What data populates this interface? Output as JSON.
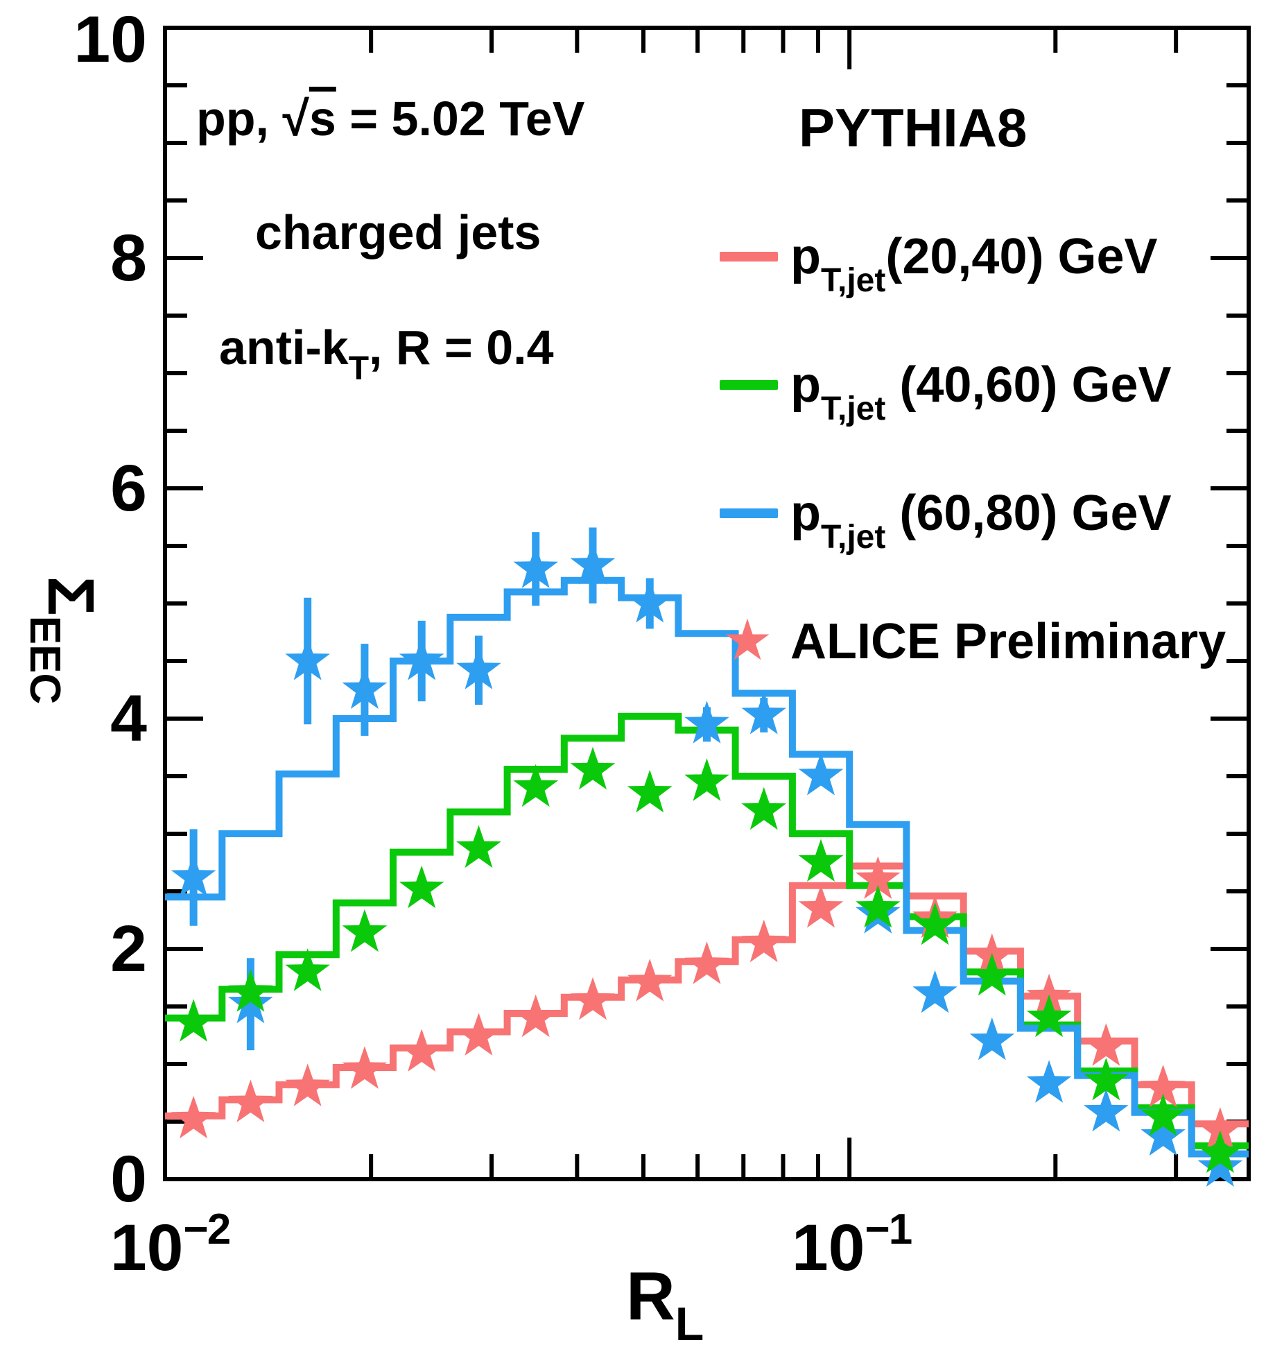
{
  "figure": {
    "background": "#ffffff",
    "axis_color": "#000000"
  },
  "annotations": {
    "line1_prefix": "pp, ",
    "line1_sqrt_symbol": "√",
    "line1_sqrt_arg": "s",
    "line1_suffix": " = 5.02 TeV",
    "line2": "charged jets",
    "line3_prefix": "anti-k",
    "line3_sub": "T",
    "line3_suffix": ", R = 0.4"
  },
  "legend": {
    "header": "PYTHIA8",
    "entries": [
      {
        "sym": "p",
        "sub": "T,jet",
        "label": "(20,40) GeV",
        "color": "#f87373",
        "type": "line"
      },
      {
        "sym": "p",
        "sub": "T,jet",
        "label": " (40,60) GeV",
        "color": "#0ac90a",
        "type": "line"
      },
      {
        "sym": "p",
        "sub": "T,jet",
        "label": " (60,80) GeV",
        "color": "#2e9ef0",
        "type": "line"
      },
      {
        "label": "ALICE Preliminary",
        "color": "#f87373",
        "type": "star",
        "glyph": "★"
      }
    ]
  },
  "axes": {
    "x": {
      "label_sym": "R",
      "label_sub": "L",
      "tick1_base": "10",
      "tick1_exp": "−2",
      "tick2_base": "10",
      "tick2_exp": "−1"
    },
    "y": {
      "label_sym": "Σ",
      "label_sub": "EEC",
      "tick_labels": [
        "0",
        "2",
        "4",
        "6",
        "8",
        "10"
      ]
    }
  },
  "chart_data": {
    "type": "step_histogram_with_star_markers",
    "title": "",
    "xlabel": "R_L",
    "ylabel": "Sigma_EEC",
    "xscale": "log",
    "xlim": [
      0.01,
      0.383119
    ],
    "ylim": [
      0,
      10
    ],
    "grid": false,
    "legend_position": "top-right",
    "x_major_ticks": [
      0.01,
      0.1
    ],
    "x_minor_ticks": [
      0.02,
      0.03,
      0.04,
      0.05,
      0.06,
      0.07,
      0.08,
      0.09,
      0.2,
      0.3
    ],
    "y_major_ticks": [
      0,
      2,
      4,
      6,
      8,
      10
    ],
    "y_minor_step": 0.5,
    "bin_edges": [
      0.01,
      0.012115,
      0.014678,
      0.017783,
      0.021544,
      0.026102,
      0.031623,
      0.038312,
      0.046416,
      0.056234,
      0.068129,
      0.08254,
      0.1,
      0.121153,
      0.14678,
      0.177828,
      0.215443,
      0.261016,
      0.316228,
      0.383119
    ],
    "series": [
      {
        "name": "pT,jet (20,40) GeV PYTHIA8",
        "style": "step",
        "color": "#f87373",
        "values": [
          0.55,
          0.69,
          0.82,
          0.97,
          1.14,
          1.28,
          1.44,
          1.58,
          1.73,
          1.89,
          2.08,
          2.55,
          2.72,
          2.46,
          1.98,
          1.59,
          1.2,
          0.82,
          0.48
        ]
      },
      {
        "name": "pT,jet (40,60) GeV PYTHIA8",
        "style": "step",
        "color": "#0ac90a",
        "values": [
          1.4,
          1.65,
          1.95,
          2.4,
          2.84,
          3.19,
          3.56,
          3.83,
          4.02,
          3.9,
          3.5,
          3.0,
          2.55,
          2.28,
          1.8,
          1.34,
          0.94,
          0.62,
          0.29
        ]
      },
      {
        "name": "pT,jet (60,80) GeV PYTHIA8",
        "style": "step",
        "color": "#2e9ef0",
        "values": [
          2.45,
          3.0,
          3.52,
          4.0,
          4.5,
          4.88,
          5.1,
          5.2,
          5.05,
          4.74,
          4.22,
          3.69,
          3.08,
          2.16,
          1.72,
          1.31,
          0.9,
          0.58,
          0.22
        ]
      }
    ],
    "markers": [
      {
        "name": "ALICE Preliminary (20,40)",
        "style": "star",
        "color": "#f87373",
        "values": [
          0.52,
          0.66,
          0.8,
          0.95,
          1.1,
          1.24,
          1.4,
          1.55,
          1.71,
          1.86,
          2.05,
          2.35,
          2.6,
          2.26,
          1.93,
          1.58,
          1.15,
          0.79,
          0.42
        ]
      },
      {
        "name": "ALICE Preliminary (40,60)",
        "style": "star",
        "color": "#0ac90a",
        "values": [
          1.36,
          1.62,
          1.8,
          2.14,
          2.52,
          2.87,
          3.4,
          3.55,
          3.35,
          3.45,
          3.2,
          2.75,
          2.35,
          2.2,
          1.76,
          1.4,
          0.85,
          0.54,
          0.22
        ]
      },
      {
        "name": "ALICE Preliminary (60,80)",
        "style": "star",
        "color": "#2e9ef0",
        "values": [
          2.62,
          1.52,
          4.5,
          4.25,
          4.5,
          4.42,
          5.3,
          5.33,
          5.0,
          3.95,
          4.03,
          3.5,
          2.3,
          1.61,
          1.2,
          0.83,
          0.58,
          0.37,
          0.1
        ],
        "errors": [
          0.42,
          0.4,
          0.55,
          0.4,
          0.35,
          0.3,
          0.32,
          0.33,
          0.22,
          0.15,
          0.15,
          0,
          0,
          0,
          0,
          0,
          0,
          0,
          0
        ]
      }
    ]
  }
}
